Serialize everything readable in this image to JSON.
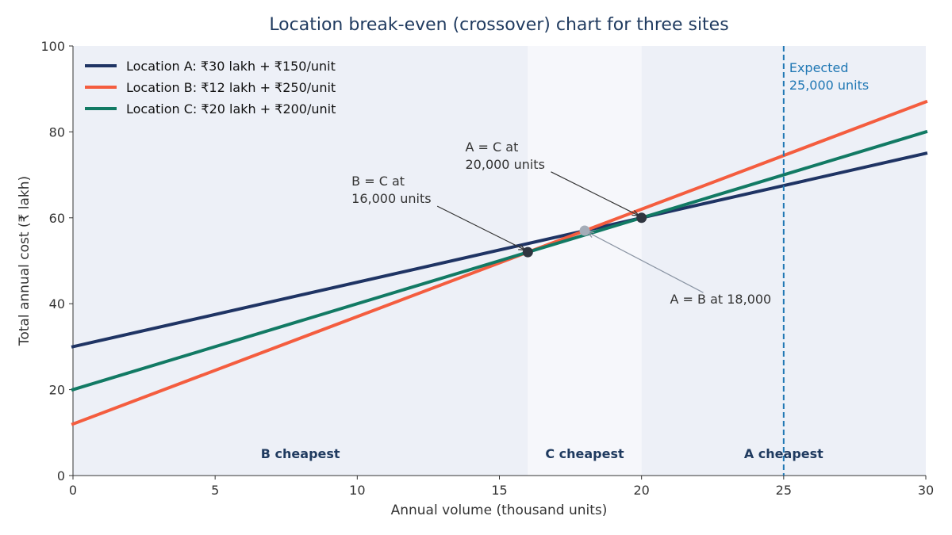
{
  "chart_data": {
    "type": "line",
    "title": "Location break-even (crossover) chart for three sites",
    "xlabel": "Annual volume (thousand units)",
    "ylabel": "Total annual cost (₹ lakh)",
    "xlim": [
      0,
      30
    ],
    "ylim": [
      0,
      100
    ],
    "xticks": [
      0,
      5,
      10,
      15,
      20,
      25,
      30
    ],
    "yticks": [
      0,
      20,
      40,
      60,
      80,
      100
    ],
    "grid": false,
    "legend_position": "top-left",
    "series": [
      {
        "name": "Location A: ₹30 lakh + ₹150/unit",
        "color": "#1f3464",
        "x": [
          0,
          30
        ],
        "y": [
          30,
          75
        ]
      },
      {
        "name": "Location B: ₹12 lakh + ₹250/unit",
        "color": "#f45d3f",
        "x": [
          0,
          30
        ],
        "y": [
          12,
          87
        ]
      },
      {
        "name": "Location C: ₹20 lakh + ₹200/unit",
        "color": "#127a64",
        "x": [
          0,
          30
        ],
        "y": [
          20,
          80
        ]
      }
    ],
    "regions": [
      {
        "label": "B cheapest",
        "x_from": 0,
        "x_to": 16,
        "color": "#edf0f7"
      },
      {
        "label": "C cheapest",
        "x_from": 16,
        "x_to": 20,
        "color": "#f6f7fb"
      },
      {
        "label": "A cheapest",
        "x_from": 20,
        "x_to": 30,
        "color": "#edf0f7"
      }
    ],
    "crossover_points": [
      {
        "x": 16,
        "y": 52,
        "color": "#2f3540",
        "text_lines": [
          "B = C at",
          "16,000 units"
        ],
        "text_x": 9.8,
        "text_y": 67.5
      },
      {
        "x": 20,
        "y": 60,
        "color": "#2f3540",
        "text_lines": [
          "A = C at",
          "20,000 units"
        ],
        "text_x": 13.8,
        "text_y": 75.5
      },
      {
        "x": 18,
        "y": 57,
        "color": "#a4acb8",
        "text_lines": [
          "A = B at 18,000"
        ],
        "text_x": 21,
        "text_y": 40
      }
    ],
    "reference_line": {
      "x": 25,
      "label_lines": [
        "Expected",
        "25,000 units"
      ],
      "color": "#1f77b4",
      "style": "dashed"
    }
  }
}
